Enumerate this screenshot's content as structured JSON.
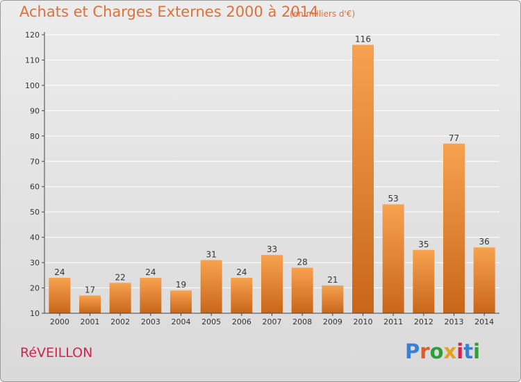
{
  "header": {
    "title": "Achats et Charges Externes 2000 à 2014",
    "subtitle": "(en milliers d'€)"
  },
  "footer": {
    "commune": "RéVEILLON",
    "logo_text": "Proxiti",
    "logo_letter_colors": [
      "#3a7fd0",
      "#e05a2a",
      "#2f9e3a",
      "#e8a020",
      "#d2234f",
      "#3a7fd0",
      "#2f9e3a"
    ]
  },
  "chart_data": {
    "type": "bar",
    "title": "Achats et Charges Externes 2000 à 2014",
    "subtitle": "(en milliers d'€)",
    "xlabel": "",
    "ylabel": "",
    "categories": [
      "2000",
      "2001",
      "2002",
      "2003",
      "2004",
      "2005",
      "2006",
      "2007",
      "2008",
      "2009",
      "2010",
      "2011",
      "2012",
      "2013",
      "2014"
    ],
    "values": [
      24,
      17,
      22,
      24,
      19,
      31,
      24,
      33,
      28,
      21,
      116,
      53,
      35,
      77,
      36
    ],
    "ylim": [
      10,
      120
    ],
    "yticks": [
      10,
      20,
      30,
      40,
      50,
      60,
      70,
      80,
      90,
      100,
      110,
      120
    ],
    "grid": true,
    "colors": {
      "bar_light": "#f7a24f",
      "bar_dark": "#c8661a",
      "grid": "#ffffff",
      "axis": "#444444"
    }
  }
}
